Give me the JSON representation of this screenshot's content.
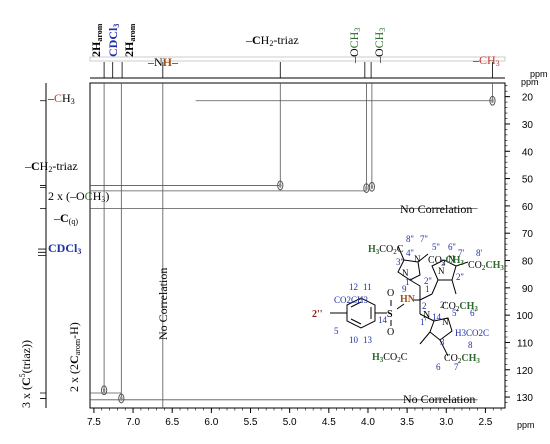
{
  "chart_data": {
    "type": "scatter",
    "title": "",
    "xlabel": "ppm",
    "ylabel": "ppm",
    "x_axis": {
      "range": [
        7.55,
        2.25
      ],
      "reversed": true,
      "ticks": [
        7.5,
        7.0,
        6.5,
        6.0,
        5.5,
        5.0,
        4.5,
        4.0,
        3.5,
        3.0,
        2.5
      ],
      "tick_labels": [
        "7.5",
        "7.0",
        "6.5",
        "6.0",
        "5.5",
        "5.0",
        "4.5",
        "4.0",
        "3.5",
        "3.0",
        "2.5"
      ]
    },
    "y_axis": {
      "range": [
        15,
        134
      ],
      "reversed": true,
      "side": "right",
      "ticks": [
        20,
        30,
        40,
        50,
        60,
        70,
        80,
        90,
        100,
        110,
        120,
        130
      ],
      "tick_labels": [
        "20",
        "30",
        "40",
        "50",
        "60",
        "70",
        "80",
        "90",
        "100",
        "110",
        "120",
        "130"
      ]
    },
    "cross_peaks": [
      {
        "h": 7.37,
        "c": 127.5
      },
      {
        "h": 7.15,
        "c": 130.5
      },
      {
        "h": 5.12,
        "c": 52.5
      },
      {
        "h": 4.02,
        "c": 53.5
      },
      {
        "h": 3.95,
        "c": 53.0
      },
      {
        "h": 2.41,
        "c": 21.5
      }
    ],
    "proton_labels": [
      {
        "ppm": 7.37,
        "text": "2H",
        "sub": "arom"
      },
      {
        "ppm": 7.26,
        "text": "CDCl",
        "sub": "3"
      },
      {
        "ppm": 7.14,
        "text": "2H",
        "sub": "arom"
      },
      {
        "ppm": 6.62,
        "text": "–NH–"
      },
      {
        "ppm": 5.12,
        "text": "–CH₂-triaz"
      },
      {
        "ppm": 4.04,
        "text": "–OCH",
        "sub": "3"
      },
      {
        "ppm": 3.96,
        "text": "–OCH",
        "sub": "3"
      },
      {
        "ppm": 2.41,
        "text": "–CH",
        "sub": "3"
      }
    ],
    "carbon_labels": [
      {
        "ppm": 21.5,
        "text": "–CH₃"
      },
      {
        "ppm": 52.5,
        "text": "–CH₂-triaz"
      },
      {
        "ppm": 53.3,
        "text": "2 x (–OCH₃)"
      },
      {
        "ppm": 61.0,
        "text": "–C(q)"
      },
      {
        "ppm": 77.0,
        "text": "CDCl₃"
      },
      {
        "ppm": 128.5,
        "text": "2 x (2C",
        "sub": "arom",
        "tail": "-H)"
      },
      {
        "ppm": 130.5,
        "text": "3 x (C⁵(triaz))"
      }
    ],
    "no_correlation_labels": [
      {
        "text": "No Correlation",
        "where": "horizontal at 61 ppm"
      },
      {
        "text": "No Correlation",
        "where": "vertical at 6.62 ppm"
      },
      {
        "text": "No Correlation",
        "where": "horizontal at 131 ppm"
      }
    ],
    "grid": false
  },
  "colors": {
    "dark_red": "#8b1a1a",
    "green": "#2e6b2e",
    "blue": "#1f2fa8",
    "brown": "#a0521a"
  },
  "structure_labels": [
    "H3CO2C",
    "7''",
    "8''",
    "5''",
    "6''",
    "CO2CH3",
    "3''",
    "4''",
    "3'",
    "7'",
    "8'",
    "N",
    "CO2CH3",
    "2''",
    "4'",
    "1''",
    "1",
    "9",
    "5'",
    "6'",
    "HN",
    "2'",
    "O",
    "S",
    "12",
    "11",
    "2",
    "1'",
    "14",
    "H3C",
    "10",
    "13",
    "12'",
    "11'",
    "H3CO2C",
    "3",
    "6",
    "5",
    "8",
    "7"
  ]
}
